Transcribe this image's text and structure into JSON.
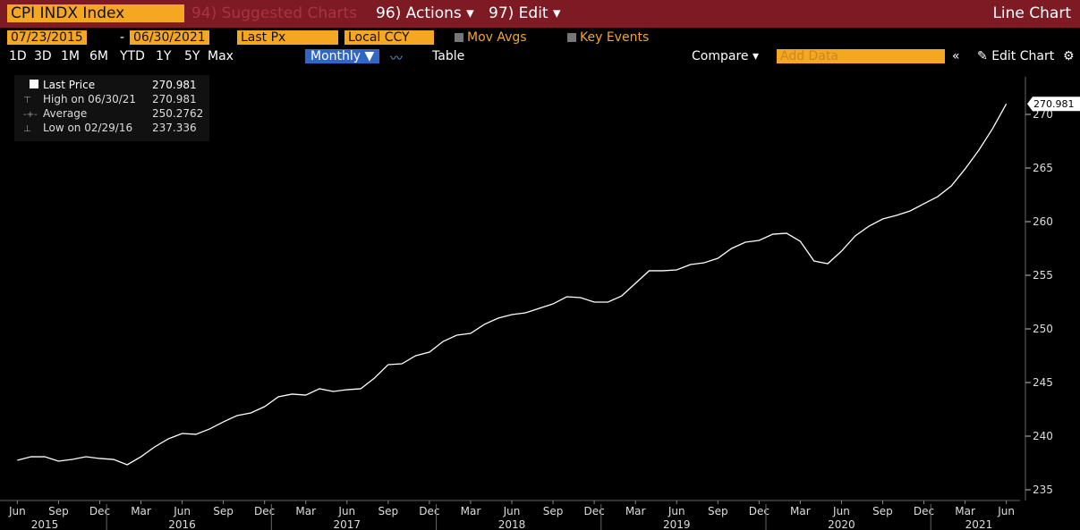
{
  "toolbar": {
    "security": "CPI INDX Index",
    "suggested": "94) Suggested Charts",
    "actions": "96) Actions ▾",
    "edit": "97) Edit ▾",
    "view": "Line Chart",
    "start_date": "07/23/2015",
    "date_sep": "-",
    "end_date": "06/30/2021",
    "field": "Last Px",
    "currency": "Local CCY",
    "mov_avgs": "Mov Avgs",
    "key_events": "Key Events",
    "periods": [
      "1D",
      "3D",
      "1M",
      "6M",
      "YTD",
      "1Y",
      "5Y",
      "Max"
    ],
    "frequency": "Monthly ▼",
    "table": "Table",
    "compare": "Compare ▾",
    "add_data": "Add Data",
    "collapse": "«",
    "edit_chart": "Edit Chart"
  },
  "chart_data": {
    "type": "line",
    "x": [
      "2015-06",
      "2015-07",
      "2015-08",
      "2015-09",
      "2015-10",
      "2015-11",
      "2015-12",
      "2016-01",
      "2016-02",
      "2016-03",
      "2016-04",
      "2016-05",
      "2016-06",
      "2016-07",
      "2016-08",
      "2016-09",
      "2016-10",
      "2016-11",
      "2016-12",
      "2017-01",
      "2017-02",
      "2017-03",
      "2017-04",
      "2017-05",
      "2017-06",
      "2017-07",
      "2017-08",
      "2017-09",
      "2017-10",
      "2017-11",
      "2017-12",
      "2018-01",
      "2018-02",
      "2018-03",
      "2018-04",
      "2018-05",
      "2018-06",
      "2018-07",
      "2018-08",
      "2018-09",
      "2018-10",
      "2018-11",
      "2018-12",
      "2019-01",
      "2019-02",
      "2019-03",
      "2019-04",
      "2019-05",
      "2019-06",
      "2019-07",
      "2019-08",
      "2019-09",
      "2019-10",
      "2019-11",
      "2019-12",
      "2020-01",
      "2020-02",
      "2020-03",
      "2020-04",
      "2020-05",
      "2020-06",
      "2020-07",
      "2020-08",
      "2020-09",
      "2020-10",
      "2020-11",
      "2020-12",
      "2021-01",
      "2021-02",
      "2021-03",
      "2021-04",
      "2021-05",
      "2021-06"
    ],
    "series": [
      {
        "name": "Last Price",
        "color": "#ffffff",
        "values": [
          237.75,
          238.08,
          238.08,
          237.67,
          237.83,
          238.08,
          237.92,
          237.83,
          237.336,
          238.08,
          239.0,
          239.75,
          240.25,
          240.17,
          240.67,
          241.33,
          241.92,
          242.17,
          242.75,
          243.67,
          243.92,
          243.83,
          244.42,
          244.17,
          244.33,
          244.42,
          245.42,
          246.67,
          246.75,
          247.5,
          247.83,
          248.83,
          249.42,
          249.58,
          250.42,
          251.0,
          251.33,
          251.5,
          251.92,
          252.33,
          253.0,
          252.92,
          252.5,
          252.5,
          253.08,
          254.25,
          255.42,
          255.42,
          255.5,
          256.0,
          256.17,
          256.58,
          257.5,
          258.08,
          258.25,
          258.83,
          258.92,
          258.17,
          256.33,
          256.08,
          257.25,
          258.67,
          259.58,
          260.25,
          260.58,
          261.0,
          261.67,
          262.33,
          263.33,
          264.92,
          266.67,
          268.67,
          270.981
        ]
      }
    ],
    "last_value_label": "270.981",
    "stats": [
      {
        "label": "High on 06/30/21",
        "value": "270.981"
      },
      {
        "label": "Average",
        "value": "250.2762"
      },
      {
        "label": "Low on 02/29/16",
        "value": "237.336"
      }
    ],
    "xlim": [
      "2015-05",
      "2021-07"
    ],
    "xticks": [
      {
        "value": "2015-06",
        "label": "Jun"
      },
      {
        "value": "2015-09",
        "label": "Sep"
      },
      {
        "value": "2015-12",
        "label": "Dec"
      },
      {
        "value": "2016-03",
        "label": "Mar"
      },
      {
        "value": "2016-06",
        "label": "Jun"
      },
      {
        "value": "2016-09",
        "label": "Sep"
      },
      {
        "value": "2016-12",
        "label": "Dec"
      },
      {
        "value": "2017-03",
        "label": "Mar"
      },
      {
        "value": "2017-06",
        "label": "Jun"
      },
      {
        "value": "2017-09",
        "label": "Sep"
      },
      {
        "value": "2017-12",
        "label": "Dec"
      },
      {
        "value": "2018-03",
        "label": "Mar"
      },
      {
        "value": "2018-06",
        "label": "Jun"
      },
      {
        "value": "2018-09",
        "label": "Sep"
      },
      {
        "value": "2018-12",
        "label": "Dec"
      },
      {
        "value": "2019-03",
        "label": "Mar"
      },
      {
        "value": "2019-06",
        "label": "Jun"
      },
      {
        "value": "2019-09",
        "label": "Sep"
      },
      {
        "value": "2019-12",
        "label": "Dec"
      },
      {
        "value": "2020-03",
        "label": "Mar"
      },
      {
        "value": "2020-06",
        "label": "Jun"
      },
      {
        "value": "2020-09",
        "label": "Sep"
      },
      {
        "value": "2020-12",
        "label": "Dec"
      },
      {
        "value": "2021-03",
        "label": "Mar"
      },
      {
        "value": "2021-06",
        "label": "Jun"
      }
    ],
    "year_ticks": [
      {
        "value": "2015-08",
        "label": "2015"
      },
      {
        "value": "2016-06",
        "label": "2016"
      },
      {
        "value": "2017-06",
        "label": "2017"
      },
      {
        "value": "2018-06",
        "label": "2018"
      },
      {
        "value": "2019-06",
        "label": "2019"
      },
      {
        "value": "2020-06",
        "label": "2020"
      },
      {
        "value": "2021-04",
        "label": "2021"
      }
    ],
    "ylim": [
      234,
      273.2
    ],
    "yticks": [
      235,
      240,
      245,
      250,
      255,
      260,
      265,
      270
    ]
  }
}
